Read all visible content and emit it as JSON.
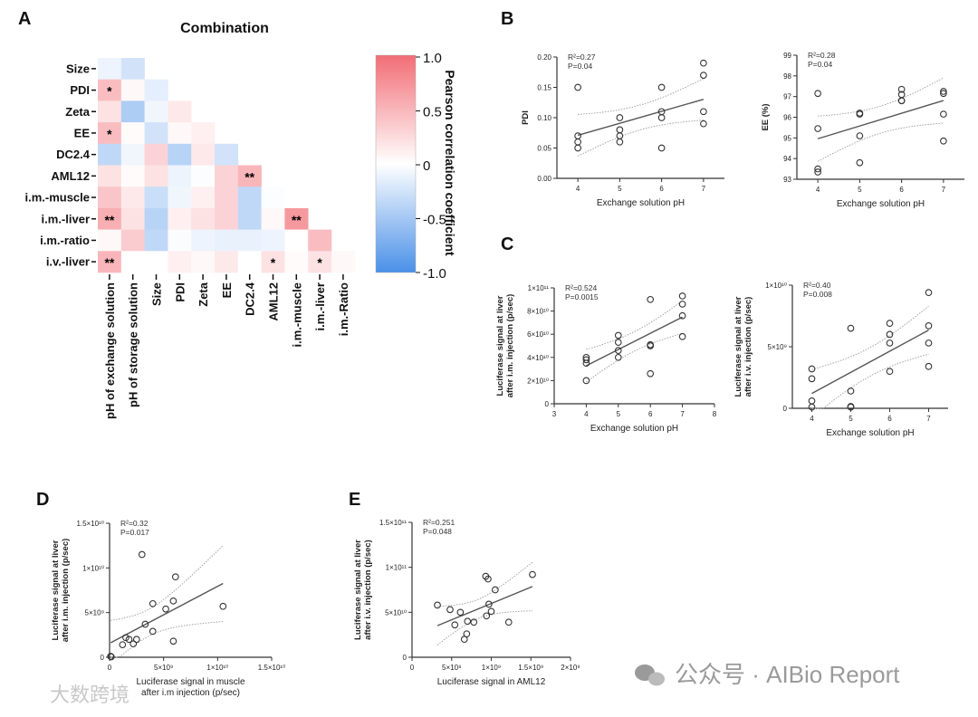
{
  "panels": {
    "A": "A",
    "B": "B",
    "C": "C",
    "D": "D",
    "E": "E"
  },
  "watermark": "公众号 · AIBio Report",
  "watermark2": "大数跨境",
  "chart_data": [
    {
      "type": "heatmap",
      "title": "Combination",
      "rows": [
        "Size",
        "PDI",
        "Zeta",
        "EE",
        "DC2.4",
        "AML12",
        "i.m.-muscle",
        "i.m.-liver",
        "i.m.-ratio",
        "i.v.-liver"
      ],
      "columns": [
        "pH of exchange solution",
        "pH of storage solution",
        "Size",
        "PDI",
        "Zeta",
        "EE",
        "DC2.4",
        "AML12",
        "i.m.-muscle",
        "i.m.-liver",
        "i.m.-Ratio"
      ],
      "values": [
        [
          -0.1,
          -0.25
        ],
        [
          0.45,
          0.05,
          -0.15
        ],
        [
          0.2,
          -0.45,
          -0.08,
          0.15
        ],
        [
          0.45,
          0.03,
          -0.25,
          0.05,
          0.1
        ],
        [
          -0.35,
          -0.08,
          0.3,
          -0.4,
          0.15,
          -0.25
        ],
        [
          0.2,
          0.03,
          0.2,
          -0.1,
          -0.02,
          0.3,
          0.5
        ],
        [
          0.4,
          0.15,
          -0.3,
          -0.08,
          0.1,
          0.3,
          -0.35,
          -0.02
        ],
        [
          0.55,
          0.2,
          -0.4,
          0.1,
          0.2,
          0.3,
          -0.35,
          0.05,
          0.7
        ],
        [
          0.05,
          0.35,
          -0.35,
          -0.03,
          -0.1,
          -0.12,
          -0.12,
          -0.1,
          0,
          0.45
        ],
        [
          0.5,
          0,
          0,
          0.1,
          0.05,
          0.15,
          0,
          0.2,
          0.03,
          0.2,
          0.05
        ]
      ],
      "significance": [
        [
          "",
          ""
        ],
        [
          "*",
          "",
          ""
        ],
        [
          "",
          "",
          "",
          ""
        ],
        [
          "*",
          "",
          "",
          "",
          ""
        ],
        [
          "",
          "",
          "",
          "",
          "",
          ""
        ],
        [
          "",
          "",
          "",
          "",
          "",
          "",
          "**"
        ],
        [
          "",
          "",
          "",
          "",
          "",
          "",
          "",
          ""
        ],
        [
          "**",
          "",
          "",
          "",
          "",
          "",
          "",
          "",
          "**"
        ],
        [
          "",
          "",
          "",
          "",
          "",
          "",
          "",
          "",
          "",
          ""
        ],
        [
          "**",
          "",
          "",
          "",
          "",
          "",
          "",
          "*",
          "",
          "*",
          ""
        ]
      ],
      "colorbar": {
        "label": "Pearson correlation coefficient",
        "ticks": [
          "1.0",
          "0.5",
          "0",
          "-0.5",
          "-1.0"
        ],
        "range": [
          -1,
          1
        ],
        "pos_color": "#f26d75",
        "neg_color": "#4a90e8"
      }
    },
    {
      "type": "scatter",
      "id": "B1",
      "xlabel": [
        "Exchange solution pH"
      ],
      "ylabel": [
        "PDI"
      ],
      "stats": [
        "R²=0.27",
        "P=0.04"
      ],
      "xlim": [
        3.5,
        7.5
      ],
      "ylim": [
        0,
        0.2
      ],
      "xticks": [
        [
          4,
          "4"
        ],
        [
          5,
          "5"
        ],
        [
          6,
          "6"
        ],
        [
          7,
          "7"
        ]
      ],
      "yticks": [
        [
          0,
          "0.00"
        ],
        [
          0.05,
          "0.05"
        ],
        [
          0.1,
          "0.10"
        ],
        [
          0.15,
          "0.15"
        ],
        [
          0.2,
          "0.20"
        ]
      ],
      "points": [
        [
          4,
          0.15
        ],
        [
          4,
          0.07
        ],
        [
          4,
          0.06
        ],
        [
          4,
          0.05
        ],
        [
          5,
          0.1
        ],
        [
          5,
          0.08
        ],
        [
          5,
          0.07
        ],
        [
          5,
          0.06
        ],
        [
          6,
          0.15
        ],
        [
          6,
          0.11
        ],
        [
          6,
          0.1
        ],
        [
          6,
          0.05
        ],
        [
          7,
          0.19
        ],
        [
          7,
          0.17
        ],
        [
          7,
          0.11
        ],
        [
          7,
          0.09
        ]
      ]
    },
    {
      "type": "scatter",
      "id": "B2",
      "xlabel": [
        "Exchange solution pH"
      ],
      "ylabel": [
        "EE (%)"
      ],
      "stats": [
        "R²=0.28",
        "P=0.04"
      ],
      "xlim": [
        3.5,
        7.5
      ],
      "ylim": [
        93,
        99
      ],
      "xticks": [
        [
          4,
          "4"
        ],
        [
          5,
          "5"
        ],
        [
          6,
          "6"
        ],
        [
          7,
          "7"
        ]
      ],
      "yticks": [
        [
          93,
          "93"
        ],
        [
          94,
          "94"
        ],
        [
          95,
          "95"
        ],
        [
          96,
          "96"
        ],
        [
          97,
          "97"
        ],
        [
          98,
          "98"
        ],
        [
          99,
          "99"
        ]
      ],
      "points": [
        [
          4,
          97.15
        ],
        [
          4,
          95.45
        ],
        [
          4,
          93.5
        ],
        [
          4,
          93.35
        ],
        [
          5,
          96.2
        ],
        [
          5,
          96.15
        ],
        [
          5,
          95.1
        ],
        [
          5,
          93.8
        ],
        [
          6,
          97.35
        ],
        [
          6,
          97.1
        ],
        [
          6,
          96.8
        ],
        [
          6,
          96.8
        ],
        [
          7,
          97.25
        ],
        [
          7,
          97.15
        ],
        [
          7,
          96.15
        ],
        [
          7,
          94.85
        ]
      ]
    },
    {
      "type": "scatter",
      "id": "C1",
      "xlabel": [
        "Exchange solution pH"
      ],
      "ylabel": [
        "Luciferase signal at liver",
        "after i.m. injection (p/sec)"
      ],
      "stats": [
        "R²=0.524",
        "P=0.0015"
      ],
      "xlim": [
        3,
        8
      ],
      "ylim": [
        0,
        100000000000.0
      ],
      "xticks": [
        [
          3,
          "3"
        ],
        [
          4,
          "4"
        ],
        [
          5,
          "5"
        ],
        [
          6,
          "6"
        ],
        [
          7,
          "7"
        ],
        [
          8,
          "8"
        ]
      ],
      "yticks": [
        [
          0,
          "0"
        ],
        [
          20000000000.0,
          "2×10¹⁰"
        ],
        [
          40000000000.0,
          "4×10¹⁰"
        ],
        [
          60000000000.0,
          "6×10¹⁰"
        ],
        [
          80000000000.0,
          "8×10¹⁰"
        ],
        [
          100000000000.0,
          "1×10¹¹"
        ]
      ],
      "points": [
        [
          4,
          40000000000.0
        ],
        [
          4,
          38000000000.0
        ],
        [
          4,
          35000000000.0
        ],
        [
          4,
          20000000000.0
        ],
        [
          5,
          59000000000.0
        ],
        [
          5,
          53000000000.0
        ],
        [
          5,
          46000000000.0
        ],
        [
          5,
          40000000000.0
        ],
        [
          6,
          90000000000.0
        ],
        [
          6,
          51000000000.0
        ],
        [
          6,
          50000000000.0
        ],
        [
          6,
          26000000000.0
        ],
        [
          7,
          93000000000.0
        ],
        [
          7,
          86000000000.0
        ],
        [
          7,
          76000000000.0
        ],
        [
          7,
          58000000000.0
        ]
      ]
    },
    {
      "type": "scatter",
      "id": "C2",
      "xlabel": [
        "Exchange solution pH"
      ],
      "ylabel": [
        "Luciferase signal at liver",
        "after i.v. injection (p/sec)"
      ],
      "stats": [
        "R²=0.40",
        "P=0.008"
      ],
      "xlim": [
        3.5,
        7.5
      ],
      "ylim": [
        0,
        10000000000.0
      ],
      "xticks": [
        [
          4,
          "4"
        ],
        [
          5,
          "5"
        ],
        [
          6,
          "6"
        ],
        [
          7,
          "7"
        ]
      ],
      "yticks": [
        [
          0,
          "0"
        ],
        [
          5000000000.0,
          "5×10⁹"
        ],
        [
          10000000000.0,
          "1×10¹⁰"
        ]
      ],
      "points": [
        [
          4,
          3200000000.0
        ],
        [
          4,
          2400000000.0
        ],
        [
          4,
          600000000.0
        ],
        [
          4,
          100000000.0
        ],
        [
          5,
          6500000000.0
        ],
        [
          5,
          1400000000.0
        ],
        [
          5,
          150000000.0
        ],
        [
          5,
          100000000.0
        ],
        [
          6,
          6900000000.0
        ],
        [
          6,
          6000000000.0
        ],
        [
          6,
          5300000000.0
        ],
        [
          6,
          3000000000.0
        ],
        [
          7,
          9400000000.0
        ],
        [
          7,
          6700000000.0
        ],
        [
          7,
          5300000000.0
        ],
        [
          7,
          3400000000.0
        ]
      ]
    },
    {
      "type": "scatter",
      "id": "D",
      "xlabel": [
        "Luciferase signal in muscle",
        "after i.m injection (p/sec)"
      ],
      "ylabel": [
        "Luciferase signal at liver",
        "after i.m. injection (p/sec)"
      ],
      "stats": [
        "R²=0.32",
        "P=0.017"
      ],
      "xlim": [
        0,
        15000000000.0
      ],
      "ylim": [
        0,
        15000000000.0
      ],
      "xticks": [
        [
          0,
          "0"
        ],
        [
          5000000000.0,
          "5×10⁹"
        ],
        [
          10000000000.0,
          "1×10¹⁰"
        ],
        [
          15000000000.0,
          "1.5×10¹⁰"
        ]
      ],
      "yticks": [
        [
          0,
          "0"
        ],
        [
          5000000000.0,
          "5×10⁹"
        ],
        [
          10000000000.0,
          "1×10¹⁰"
        ],
        [
          15000000000.0,
          "1.5×10¹⁰"
        ]
      ],
      "points": [
        [
          100000000.0,
          100000000.0
        ],
        [
          150000000.0,
          50000000.0
        ],
        [
          1200000000.0,
          1400000000.0
        ],
        [
          1500000000.0,
          2200000000.0
        ],
        [
          1800000000.0,
          2000000000.0
        ],
        [
          2200000000.0,
          1500000000.0
        ],
        [
          2500000000.0,
          2000000000.0
        ],
        [
          3000000000.0,
          11500000000.0
        ],
        [
          3300000000.0,
          3700000000.0
        ],
        [
          4000000000.0,
          6000000000.0
        ],
        [
          4000000000.0,
          2900000000.0
        ],
        [
          5200000000.0,
          5400000000.0
        ],
        [
          5900000000.0,
          6300000000.0
        ],
        [
          5900000000.0,
          1800000000.0
        ],
        [
          6100000000.0,
          9000000000.0
        ],
        [
          10500000000.0,
          5700000000.0
        ]
      ]
    },
    {
      "type": "scatter",
      "id": "E",
      "xlabel": [
        "Luciferase signal in AML12"
      ],
      "ylabel": [
        "Luciferase signal at liver",
        "after i.v. injection (p/sec)"
      ],
      "stats": [
        "R²=0.251",
        "P=0.048"
      ],
      "xlim": [
        0,
        2000000000.0
      ],
      "ylim": [
        0,
        150000000000.0
      ],
      "xticks": [
        [
          0,
          "0"
        ],
        [
          500000000.0,
          "5×10⁸"
        ],
        [
          1000000000.0,
          "1×10⁹"
        ],
        [
          1500000000.0,
          "1.5×10⁹"
        ],
        [
          2000000000.0,
          "2×10⁹"
        ]
      ],
      "yticks": [
        [
          0,
          "0"
        ],
        [
          50000000000.0,
          "5×10¹⁰"
        ],
        [
          100000000000.0,
          "1×10¹¹"
        ],
        [
          150000000000.0,
          "1.5×10¹¹"
        ]
      ],
      "points": [
        [
          320000000.0,
          58000000000.0
        ],
        [
          480000000.0,
          53000000000.0
        ],
        [
          540000000.0,
          36000000000.0
        ],
        [
          610000000.0,
          50000000000.0
        ],
        [
          660000000.0,
          20000000000.0
        ],
        [
          690000000.0,
          26000000000.0
        ],
        [
          700000000.0,
          40000000000.0
        ],
        [
          780000000.0,
          39000000000.0
        ],
        [
          930000000.0,
          90000000000.0
        ],
        [
          960000000.0,
          87000000000.0
        ],
        [
          940000000.0,
          46000000000.0
        ],
        [
          970000000.0,
          59000000000.0
        ],
        [
          1000000000.0,
          51000000000.0
        ],
        [
          1050000000.0,
          75000000000.0
        ],
        [
          1220000000.0,
          39000000000.0
        ],
        [
          1520000000.0,
          92000000000.0
        ]
      ]
    }
  ]
}
